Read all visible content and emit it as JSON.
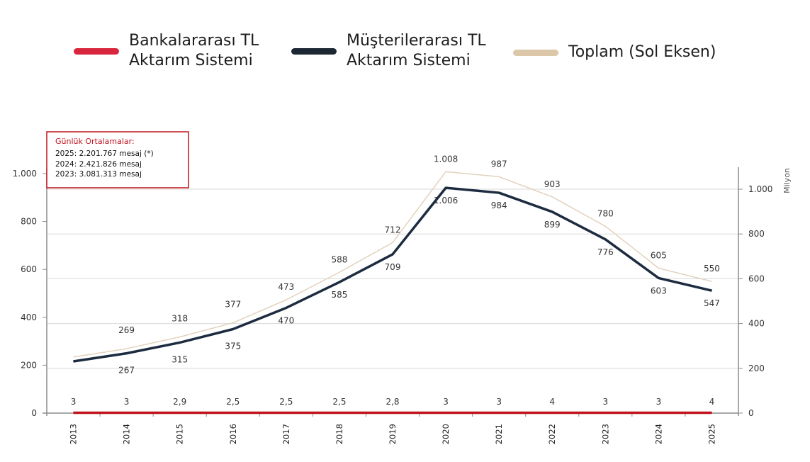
{
  "legend": [
    {
      "label_line1": "Bankalararası TL",
      "label_line2": "Aktarım Sistemi",
      "color": "#d7263d"
    },
    {
      "label_line1": "Müşterilerarası TL",
      "label_line2": "Aktarım Sistemi",
      "color": "#1c2734"
    },
    {
      "label_line1": "Toplam (Sol Eksen)",
      "label_line2": "",
      "color": "#dcc7a8"
    }
  ],
  "info_box": {
    "title": "Günlük Ortalamalar:",
    "lines": [
      "2025: 2.201.767 mesaj (*)",
      "2024:  2.421.826 mesaj",
      "2023:  3.081.313 mesaj"
    ]
  },
  "chart_data": {
    "type": "line",
    "categories": [
      "2013",
      "2014",
      "2015",
      "2016",
      "2017",
      "2018",
      "2019",
      "2020",
      "2021",
      "2022",
      "2023",
      "2024",
      "2025"
    ],
    "left_axis": {
      "ticks": [
        "0",
        "200",
        "400",
        "600",
        "800",
        "1.000"
      ],
      "tick_values": [
        0,
        200,
        400,
        600,
        800,
        1000
      ],
      "range": [
        0,
        1000
      ]
    },
    "right_axis": {
      "label": "Milyon",
      "ticks": [
        "0",
        "200",
        "400",
        "600",
        "800",
        "1.000"
      ],
      "tick_values": [
        0,
        200,
        400,
        600,
        800,
        1000
      ],
      "range": [
        0,
        1100
      ]
    },
    "series": [
      {
        "name": "Bankalararası TL Aktarım Sistemi",
        "axis": "right",
        "color": "#c0141f",
        "values": [
          3,
          3,
          2.9,
          2.5,
          2.5,
          2.5,
          2.8,
          3,
          3,
          4,
          3,
          3,
          4
        ],
        "labels": [
          "3",
          "3",
          "2,9",
          "2,5",
          "2,5",
          "2,5",
          "2,8",
          "3",
          "3",
          "4",
          "3",
          "3",
          "4"
        ]
      },
      {
        "name": "Müşterilerarası TL Aktarım Sistemi",
        "axis": "right",
        "color": "#1c2b3f",
        "values": [
          231,
          267,
          315,
          375,
          470,
          585,
          709,
          1006,
          984,
          899,
          776,
          603,
          547
        ],
        "labels": [
          "",
          "267",
          "315",
          "375",
          "470",
          "585",
          "709",
          "1.006",
          "984",
          "899",
          "776",
          "603",
          "547"
        ]
      },
      {
        "name": "Toplam (Sol Eksen)",
        "axis": "left",
        "color": "#e2d2bd",
        "values": [
          234,
          269,
          318,
          377,
          473,
          588,
          712,
          1008,
          987,
          903,
          780,
          605,
          550
        ],
        "labels": [
          "",
          "269",
          "318",
          "377",
          "473",
          "588",
          "712",
          "1.008",
          "987",
          "903",
          "780",
          "605",
          "550"
        ]
      }
    ],
    "grid": true,
    "legend_position": "top"
  }
}
